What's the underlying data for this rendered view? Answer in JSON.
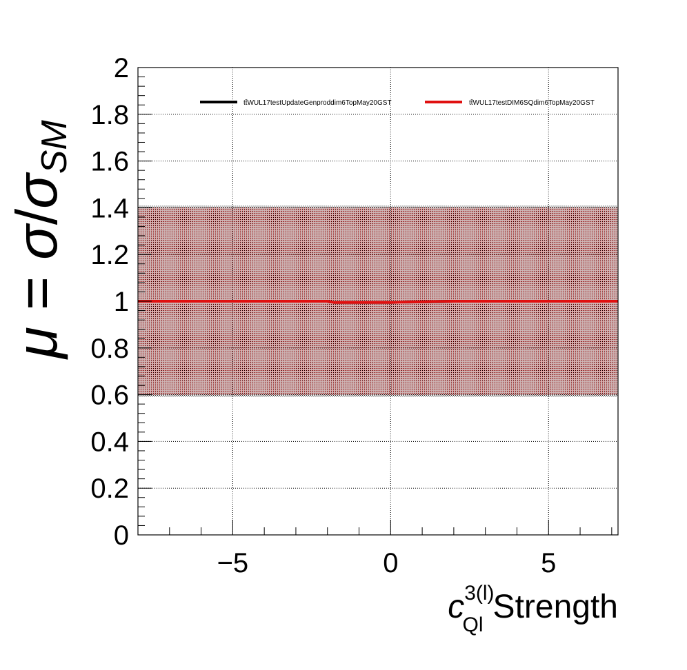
{
  "chart_data": {
    "type": "line",
    "title": "",
    "xlabel": {
      "symbol": "c",
      "superscript": "3(l)",
      "subscript": "Ql",
      "text": "Strength"
    },
    "ylabel": {
      "mu": "μ",
      "equals": "=",
      "sigma_num": "σ",
      "slash": "/",
      "sigma_den": "σ",
      "subscript": "SM"
    },
    "xlim": [
      -8,
      7.2
    ],
    "ylim": [
      0,
      2
    ],
    "x_major_ticks": [
      -5,
      0,
      5
    ],
    "x_tick_labels": [
      "−5",
      "0",
      "5"
    ],
    "y_major_ticks": [
      0,
      0.2,
      0.4,
      0.6,
      0.8,
      1,
      1.2,
      1.4,
      1.6,
      1.8,
      2
    ],
    "y_tick_labels": [
      "0",
      "0.2",
      "0.4",
      "0.6",
      "0.8",
      "1",
      "1.2",
      "1.4",
      "1.6",
      "1.8",
      "2"
    ],
    "grid": true,
    "legend_position": "top",
    "x": [
      -8,
      -6,
      -4,
      -2,
      -1.8,
      0,
      2,
      4,
      6,
      7.2
    ],
    "series": [
      {
        "name": "tt̄WUL17testUpdateGenproddim6TopMay20GST",
        "color": "#000000",
        "values": [
          1.0,
          1.0,
          1.0,
          1.0,
          0.995,
          0.995,
          1.0,
          1.0,
          1.0,
          1.0
        ],
        "band_low": [
          0.59,
          0.59,
          0.59,
          0.59,
          0.59,
          0.59,
          0.59,
          0.59,
          0.59,
          0.59
        ],
        "band_high": [
          1.41,
          1.41,
          1.41,
          1.41,
          1.41,
          1.41,
          1.41,
          1.41,
          1.41,
          1.41
        ]
      },
      {
        "name": "tt̄WUL17testDIM6SQdim6TopMay20GST",
        "color": "#e01010",
        "values": [
          1.0,
          1.0,
          1.0,
          1.0,
          0.995,
          0.995,
          1.0,
          1.0,
          1.0,
          1.0
        ],
        "band_low": [
          0.6,
          0.6,
          0.6,
          0.6,
          0.6,
          0.6,
          0.6,
          0.6,
          0.6,
          0.6
        ],
        "band_high": [
          1.4,
          1.4,
          1.4,
          1.4,
          1.4,
          1.4,
          1.4,
          1.4,
          1.4,
          1.4
        ]
      }
    ]
  }
}
